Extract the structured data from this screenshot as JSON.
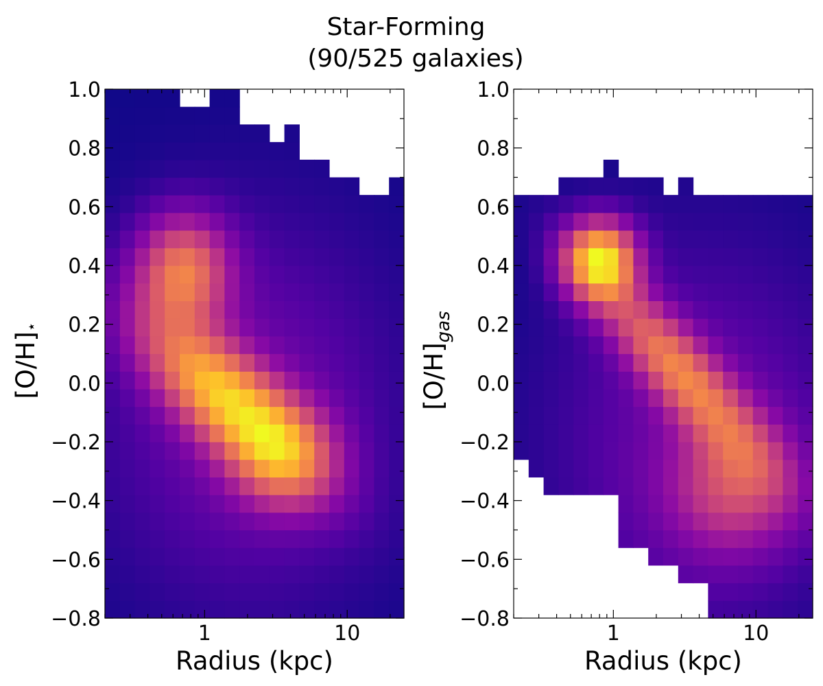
{
  "figure": {
    "title_line1": "Star-Forming",
    "title_line2": "(90/525 galaxies)"
  },
  "chart_data": [
    {
      "type": "heatmap",
      "panel": "left",
      "xlabel": "Radius (kpc)",
      "ylabel_main": "[O/H]",
      "ylabel_sub": "⋆",
      "ylabel_sub_style": "superscript",
      "xscale": "log",
      "xlim": [
        0.2,
        25
      ],
      "ylim": [
        -0.8,
        1.0
      ],
      "x_ticks": [
        1,
        10
      ],
      "x_tick_labels": [
        "1",
        "10"
      ],
      "y_ticks": [
        -0.8,
        -0.6,
        -0.4,
        -0.2,
        0.0,
        0.2,
        0.4,
        0.6,
        0.8,
        1.0
      ],
      "y_tick_labels": [
        "−0.8",
        "−0.6",
        "−0.4",
        "−0.2",
        "0.0",
        "0.2",
        "0.4",
        "0.6",
        "0.8",
        "1.0"
      ],
      "colormap": "plasma",
      "density_peaks": [
        {
          "radius_kpc": 1.4,
          "oh": -0.02,
          "value": 1.0
        },
        {
          "radius_kpc": 0.7,
          "oh": 0.38,
          "value": 0.85
        }
      ],
      "ridge": {
        "x0_log": 0.1,
        "y0": 0.04,
        "slope": -0.36,
        "sigma_perp": 0.11,
        "sigma_para": 0.45
      },
      "empty_region": "upper right (high [O/H] at large radius)"
    },
    {
      "type": "heatmap",
      "panel": "right",
      "xlabel": "Radius (kpc)",
      "ylabel_main": "[O/H]",
      "ylabel_sub": "gas",
      "ylabel_sub_style": "subscript-italic",
      "xscale": "log",
      "xlim": [
        0.2,
        25
      ],
      "ylim": [
        -0.8,
        1.0
      ],
      "x_ticks": [
        1,
        10
      ],
      "x_tick_labels": [
        "1",
        "10"
      ],
      "y_ticks": [
        -0.8,
        -0.6,
        -0.4,
        -0.2,
        0.0,
        0.2,
        0.4,
        0.6,
        0.8,
        1.0
      ],
      "y_tick_labels": [
        "−0.8",
        "−0.6",
        "−0.4",
        "−0.2",
        "0.0",
        "0.2",
        "0.4",
        "0.6",
        "0.8",
        "1.0"
      ],
      "colormap": "plasma",
      "density_peaks": [
        {
          "radius_kpc": 0.8,
          "oh": 0.42,
          "value": 1.0
        }
      ],
      "ridge": {
        "x0_log": 0.05,
        "y0": 0.15,
        "slope": -0.45,
        "sigma_perp": 0.1,
        "sigma_para": 0.5
      },
      "empty_region": "upper right above 0.63 and lower left below -0.25"
    }
  ]
}
